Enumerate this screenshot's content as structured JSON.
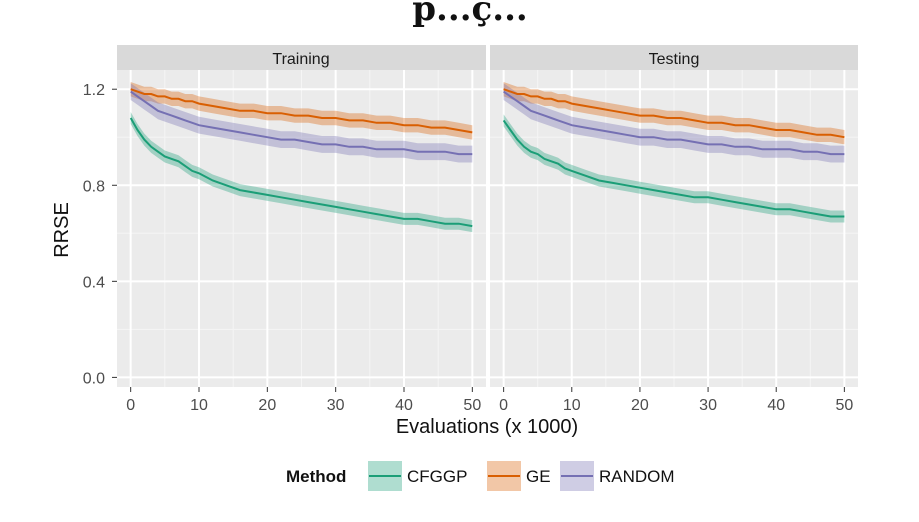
{
  "header": {
    "cropped_title": "p...ç..."
  },
  "chart_data": {
    "type": "line",
    "panels": [
      "Training",
      "Testing"
    ],
    "xlabel": "Evaluations (x 1000)",
    "ylabel": "RRSE",
    "xlim": [
      -2,
      52
    ],
    "ylim": [
      -0.04,
      1.28
    ],
    "xticks": [
      0,
      10,
      20,
      30,
      40,
      50
    ],
    "yticks": [
      "0.0",
      "0.4",
      "0.8",
      "1.2"
    ],
    "grid": true,
    "legend": {
      "title": "Method",
      "position": "bottom"
    },
    "x": [
      0,
      1,
      2,
      3,
      4,
      5,
      6,
      7,
      8,
      9,
      10,
      12,
      14,
      16,
      18,
      20,
      22,
      24,
      26,
      28,
      30,
      32,
      34,
      36,
      38,
      40,
      42,
      44,
      46,
      48,
      50
    ],
    "series": [
      {
        "name": "CFGGP",
        "color": "#1b9e77",
        "training": [
          1.08,
          1.03,
          0.99,
          0.96,
          0.94,
          0.92,
          0.91,
          0.9,
          0.88,
          0.86,
          0.85,
          0.82,
          0.8,
          0.78,
          0.77,
          0.76,
          0.75,
          0.74,
          0.73,
          0.72,
          0.71,
          0.7,
          0.69,
          0.68,
          0.67,
          0.66,
          0.66,
          0.65,
          0.64,
          0.64,
          0.63
        ],
        "testing": [
          1.07,
          1.03,
          0.99,
          0.96,
          0.94,
          0.93,
          0.91,
          0.9,
          0.89,
          0.87,
          0.86,
          0.84,
          0.82,
          0.81,
          0.8,
          0.79,
          0.78,
          0.77,
          0.76,
          0.75,
          0.75,
          0.74,
          0.73,
          0.72,
          0.71,
          0.7,
          0.7,
          0.69,
          0.68,
          0.67,
          0.67
        ],
        "band": 0.025
      },
      {
        "name": "GE",
        "color": "#d95f02",
        "training": [
          1.2,
          1.19,
          1.18,
          1.18,
          1.17,
          1.17,
          1.16,
          1.16,
          1.15,
          1.15,
          1.14,
          1.13,
          1.12,
          1.11,
          1.11,
          1.1,
          1.1,
          1.09,
          1.09,
          1.08,
          1.08,
          1.07,
          1.07,
          1.06,
          1.06,
          1.05,
          1.05,
          1.04,
          1.04,
          1.03,
          1.02
        ],
        "testing": [
          1.2,
          1.19,
          1.18,
          1.18,
          1.17,
          1.17,
          1.16,
          1.16,
          1.15,
          1.15,
          1.14,
          1.13,
          1.12,
          1.11,
          1.1,
          1.09,
          1.09,
          1.08,
          1.08,
          1.07,
          1.06,
          1.06,
          1.05,
          1.05,
          1.04,
          1.03,
          1.03,
          1.02,
          1.01,
          1.01,
          1.0
        ],
        "band": 0.03
      },
      {
        "name": "RANDOM",
        "color": "#7570b3",
        "training": [
          1.19,
          1.17,
          1.15,
          1.13,
          1.11,
          1.1,
          1.09,
          1.08,
          1.07,
          1.06,
          1.05,
          1.04,
          1.03,
          1.02,
          1.01,
          1.0,
          0.99,
          0.99,
          0.98,
          0.97,
          0.97,
          0.96,
          0.96,
          0.95,
          0.95,
          0.95,
          0.94,
          0.94,
          0.94,
          0.93,
          0.93
        ],
        "testing": [
          1.19,
          1.17,
          1.15,
          1.13,
          1.11,
          1.1,
          1.09,
          1.08,
          1.07,
          1.06,
          1.05,
          1.04,
          1.03,
          1.02,
          1.01,
          1.0,
          1.0,
          0.99,
          0.99,
          0.98,
          0.97,
          0.97,
          0.96,
          0.96,
          0.95,
          0.95,
          0.95,
          0.94,
          0.94,
          0.93,
          0.93
        ],
        "band": 0.035
      }
    ]
  }
}
